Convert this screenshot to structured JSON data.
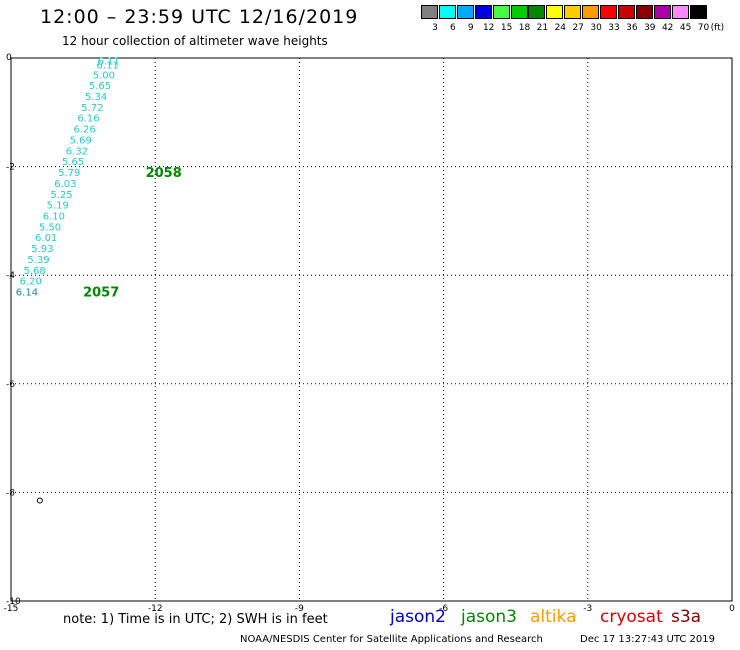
{
  "header": {
    "title": "12:00 – 23:59 UTC 12/16/2019",
    "subtitle": "12 hour collection of altimeter wave heights"
  },
  "legend": {
    "levels": [
      "3",
      "6",
      "9",
      "12",
      "15",
      "18",
      "21",
      "24",
      "27",
      "30",
      "33",
      "36",
      "39",
      "42",
      "45",
      "70"
    ],
    "unit": "(ft)",
    "colors": [
      "#808080",
      "#00ffff",
      "#00aaff",
      "#0000dd",
      "#44ff44",
      "#00cc00",
      "#008800",
      "#ffff00",
      "#ffcc00",
      "#ff9900",
      "#ff0000",
      "#cc0000",
      "#880000",
      "#aa00aa",
      "#ff88ff",
      "#000000"
    ]
  },
  "footer": {
    "note": "note: 1) Time is in UTC; 2) SWH is in feet",
    "credit": "NOAA/NESDIS Center for Satellite Applications and Research",
    "timestamp": "Dec 17 13:27:43 UTC 2019",
    "satellites": [
      {
        "name": "jason2",
        "color": "#0000cc"
      },
      {
        "name": "jason3",
        "color": "#008800"
      },
      {
        "name": "altika",
        "color": "#ff9900"
      },
      {
        "name": "cryosat",
        "color": "#dd0000"
      },
      {
        "name": "s3a",
        "color": "#880000"
      }
    ]
  },
  "chart_data": {
    "type": "scatter",
    "xlim": [
      -15,
      0
    ],
    "ylim": [
      -10,
      0
    ],
    "xticks": [
      "-15",
      "-12",
      "-9",
      "-6",
      "-3",
      "0"
    ],
    "yticks": [
      "0",
      "-2",
      "-4",
      "-6",
      "-8",
      "-10"
    ],
    "grid": true,
    "points": [
      {
        "x": -13.2,
        "y": -0.05,
        "label": "6.11",
        "color": "#22cccc"
      },
      {
        "x": -13.22,
        "y": -0.12,
        "label": "6.11",
        "color": "#22cccc"
      },
      {
        "x": -13.3,
        "y": -0.3,
        "label": "5.00",
        "color": "#22cccc"
      },
      {
        "x": -13.38,
        "y": -0.5,
        "label": "5.65",
        "color": "#22cccc"
      },
      {
        "x": -13.46,
        "y": -0.7,
        "label": "5.34",
        "color": "#22cccc"
      },
      {
        "x": -13.54,
        "y": -0.9,
        "label": "5.72",
        "color": "#22cccc"
      },
      {
        "x": -13.62,
        "y": -1.1,
        "label": "6.16",
        "color": "#22cccc"
      },
      {
        "x": -13.7,
        "y": -1.3,
        "label": "6.26",
        "color": "#22cccc"
      },
      {
        "x": -13.78,
        "y": -1.5,
        "label": "5.69",
        "color": "#22cccc"
      },
      {
        "x": -13.86,
        "y": -1.7,
        "label": "6.32",
        "color": "#22cccc"
      },
      {
        "x": -13.94,
        "y": -1.9,
        "label": "5.65",
        "color": "#22cccc"
      },
      {
        "x": -14.02,
        "y": -2.1,
        "label": "5.79",
        "color": "#22cccc"
      },
      {
        "x": -14.1,
        "y": -2.3,
        "label": "6.03",
        "color": "#22cccc"
      },
      {
        "x": -14.18,
        "y": -2.5,
        "label": "5.25",
        "color": "#22cccc"
      },
      {
        "x": -14.26,
        "y": -2.7,
        "label": "5.19",
        "color": "#22cccc"
      },
      {
        "x": -14.34,
        "y": -2.9,
        "label": "6.10",
        "color": "#22cccc"
      },
      {
        "x": -14.42,
        "y": -3.1,
        "label": "5.50",
        "color": "#22cccc"
      },
      {
        "x": -14.5,
        "y": -3.3,
        "label": "6.01",
        "color": "#22cccc"
      },
      {
        "x": -14.58,
        "y": -3.5,
        "label": "5.93",
        "color": "#22cccc"
      },
      {
        "x": -14.66,
        "y": -3.7,
        "label": "5.39",
        "color": "#22cccc"
      },
      {
        "x": -14.74,
        "y": -3.9,
        "label": "5.68",
        "color": "#22cccc"
      },
      {
        "x": -14.82,
        "y": -4.1,
        "label": "6.20",
        "color": "#22cccc"
      },
      {
        "x": -14.9,
        "y": -4.3,
        "label": "6.14",
        "color": "#1188aa"
      }
    ],
    "pass_labels": [
      {
        "x": -12.2,
        "y": -2.1,
        "label": "2058",
        "color": "#008800"
      },
      {
        "x": -13.5,
        "y": -4.3,
        "label": "2057",
        "color": "#008800"
      }
    ],
    "markers": [
      {
        "x": -14.4,
        "y": -8.15,
        "symbol": "circle"
      }
    ]
  }
}
